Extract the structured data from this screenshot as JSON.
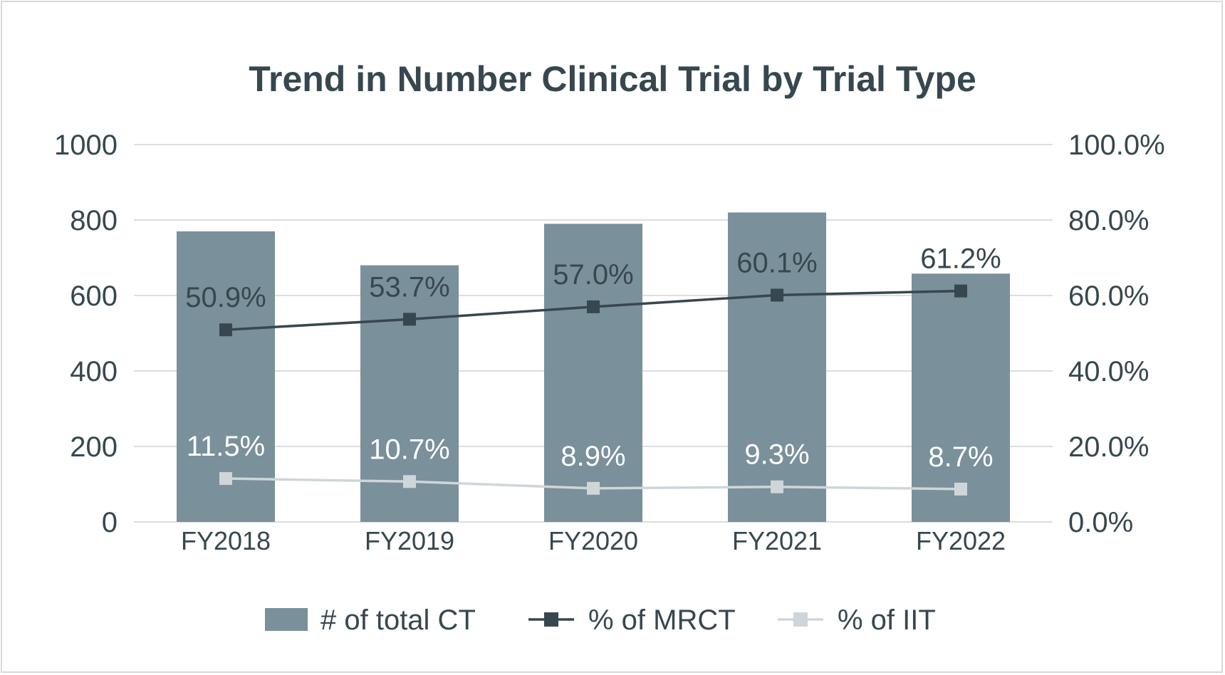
{
  "chart_data": {
    "type": "bar",
    "title": "Trend in Number Clinical Trial by Trial Type",
    "categories": [
      "FY2018",
      "FY2019",
      "FY2020",
      "FY2021",
      "FY2022"
    ],
    "series": [
      {
        "name": "# of total CT",
        "type": "bar",
        "axis": "left",
        "values": [
          770,
          680,
          790,
          820,
          658
        ],
        "color": "#7a909b"
      },
      {
        "name": "% of MRCT",
        "type": "line",
        "axis": "right",
        "values": [
          50.9,
          53.7,
          57.0,
          60.1,
          61.2
        ],
        "labels": [
          "50.9%",
          "53.7%",
          "57.0%",
          "60.1%",
          "61.2%"
        ],
        "color": "#37474f"
      },
      {
        "name": "% of IIT",
        "type": "line",
        "axis": "right",
        "values": [
          11.5,
          10.7,
          8.9,
          9.3,
          8.7
        ],
        "labels": [
          "11.5%",
          "10.7%",
          "8.9%",
          "9.3%",
          "8.7%"
        ],
        "color": "#cfd6da"
      }
    ],
    "y_left": {
      "ylim": [
        0,
        1000
      ],
      "ticks": [
        "0",
        "200",
        "400",
        "600",
        "800",
        "1000"
      ]
    },
    "y_right": {
      "ylim": [
        0,
        100
      ],
      "ticks": [
        "0.0%",
        "20.0%",
        "40.0%",
        "60.0%",
        "80.0%",
        "100.0%"
      ]
    },
    "grid": true,
    "legend": "bottom"
  }
}
